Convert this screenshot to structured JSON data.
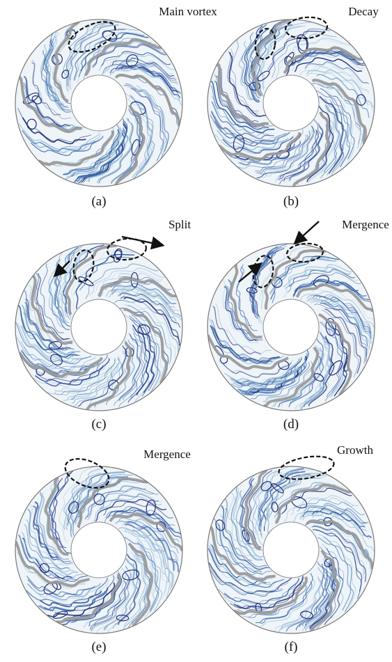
{
  "panels": [
    {
      "label": "(a)",
      "annotation": "Main vortex"
    },
    {
      "label": "(b)",
      "annotation": "Decay"
    },
    {
      "label": "(c)",
      "annotation": "Split"
    },
    {
      "label": "(d)",
      "annotation": "Mergence"
    },
    {
      "label": "(e)",
      "annotation": "Mergence"
    },
    {
      "label": "(f)",
      "annotation": "Growth"
    }
  ]
}
